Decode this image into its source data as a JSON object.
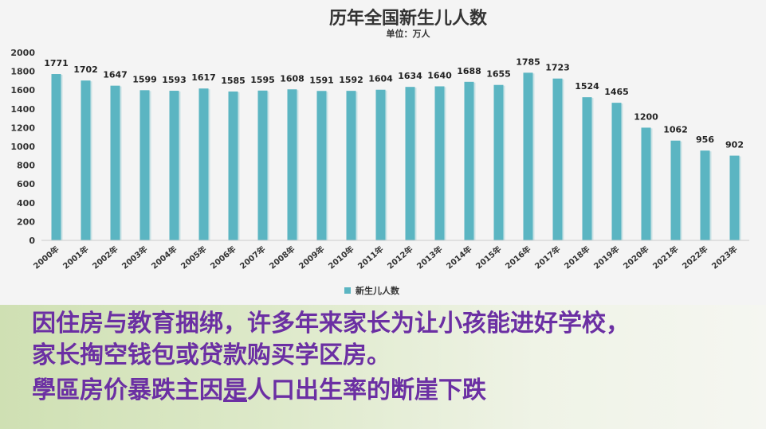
{
  "chart_data": {
    "type": "bar",
    "title": "历年全国新生儿人数",
    "subtitle": "单位：万人",
    "xlabel": "",
    "ylabel": "",
    "ylim": [
      0,
      2000
    ],
    "yticks": [
      0,
      200,
      400,
      600,
      800,
      1000,
      1200,
      1400,
      1600,
      1800,
      2000
    ],
    "grid": false,
    "legend": "bottom",
    "categories": [
      "2000年",
      "2001年",
      "2002年",
      "2003年",
      "2004年",
      "2005年",
      "2006年",
      "2007年",
      "2008年",
      "2009年",
      "2010年",
      "2011年",
      "2012年",
      "2013年",
      "2014年",
      "2015年",
      "2016年",
      "2017年",
      "2018年",
      "2019年",
      "2020年",
      "2021年",
      "2022年",
      "2023年"
    ],
    "series": [
      {
        "name": "新生儿人数",
        "color": "#5bb5c2",
        "values": [
          1771,
          1702,
          1647,
          1599,
          1593,
          1617,
          1585,
          1595,
          1608,
          1591,
          1592,
          1604,
          1634,
          1640,
          1688,
          1655,
          1785,
          1723,
          1524,
          1465,
          1200,
          1062,
          956,
          902
        ]
      }
    ]
  },
  "caption": {
    "line1": "因住房与教育捆绑，许多年来家长为让小孩能进好学校，",
    "line2": "家长掏空钱包或贷款购买学区房。",
    "line3_before": "學區房价暴跌主因",
    "line3_underlined": "是",
    "line3_after": "人口出生率的断崖下跌"
  },
  "colors": {
    "bar": "#5bb5c2",
    "caption_text": "#6b2fa3",
    "chart_background": "#f4f4f4"
  }
}
